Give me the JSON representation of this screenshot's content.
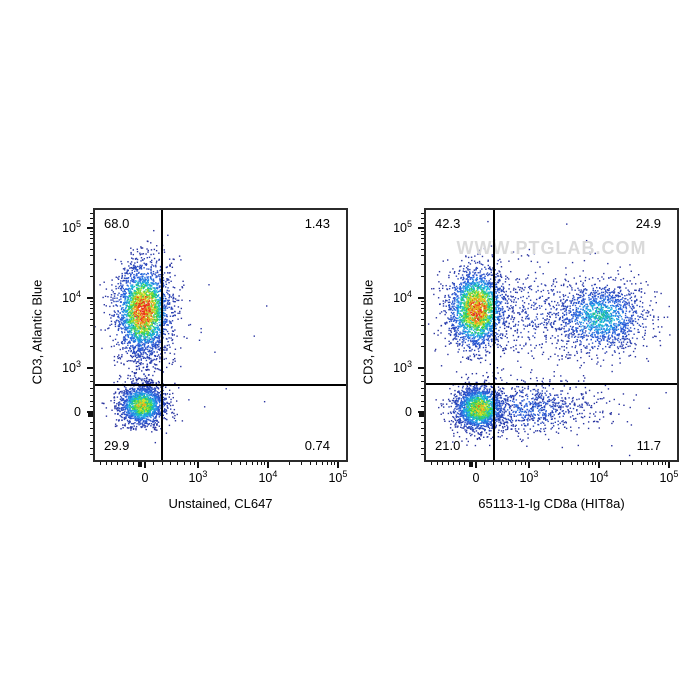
{
  "watermark": {
    "text": "WWW.PTGLAB.COM",
    "color": "#dadada"
  },
  "colors": {
    "background": "#ffffff",
    "frame": "#2b2b2b",
    "gate": "#000000",
    "tick": "#111111",
    "text": "#000000"
  },
  "colormap": [
    [
      0.0,
      "#28309c"
    ],
    [
      0.3,
      "#2b62e0"
    ],
    [
      0.48,
      "#1cc0e8"
    ],
    [
      0.62,
      "#27d044"
    ],
    [
      0.78,
      "#e6e928"
    ],
    [
      0.9,
      "#f59c1c"
    ],
    [
      1.0,
      "#e8321c"
    ]
  ],
  "chart_data": [
    {
      "type": "scatter",
      "plot_style": "flow-cytometry-density-dot-plot",
      "xlabel": "Unstained, CL647",
      "ylabel": "CD3, Atlantic Blue",
      "x_scale": "biexponential",
      "y_scale": "biexponential",
      "x_ticks": [
        {
          "text": "0",
          "f": 0.199
        },
        {
          "text": "10",
          "exp": "3",
          "f": 0.41
        },
        {
          "text": "10",
          "exp": "4",
          "f": 0.689
        },
        {
          "text": "10",
          "exp": "5",
          "f": 0.968
        }
      ],
      "y_ticks": [
        {
          "text": "10",
          "exp": "5",
          "f": 0.072
        },
        {
          "text": "10",
          "exp": "4",
          "f": 0.352
        },
        {
          "text": "10",
          "exp": "3",
          "f": 0.632
        },
        {
          "text": "0",
          "f": 0.808
        }
      ],
      "gate": {
        "fx": 0.267,
        "fy": 0.7
      },
      "quadrants": {
        "top_left": "68.0",
        "top_right": "1.43",
        "bottom_left": "29.9",
        "bottom_right": "0.74"
      },
      "populations": [
        {
          "name": "background-scatter",
          "fx": 0.3,
          "fy": 0.5,
          "sx": 0.3,
          "sy": 0.28,
          "n": 45,
          "peak": 0.04
        },
        {
          "name": "inter-cluster-tail",
          "fx": 0.195,
          "fy": 0.58,
          "sx": 0.042,
          "sy": 0.09,
          "n": 190,
          "peak": 0.15
        },
        {
          "name": "upper-left-cluster",
          "fx": 0.19,
          "fy": 0.4,
          "sx": 0.055,
          "sy": 0.092,
          "n": 2600,
          "peak": 1.0
        },
        {
          "name": "lower-left-cluster",
          "fx": 0.185,
          "fy": 0.778,
          "sx": 0.048,
          "sy": 0.042,
          "n": 1600,
          "peak": 0.76
        }
      ]
    },
    {
      "type": "scatter",
      "plot_style": "flow-cytometry-density-dot-plot",
      "xlabel": "65113-1-Ig CD8a (HIT8a)",
      "ylabel": "CD3, Atlantic Blue",
      "x_scale": "biexponential",
      "y_scale": "biexponential",
      "watermark": true,
      "x_ticks": [
        {
          "text": "0",
          "f": 0.199
        },
        {
          "text": "10",
          "exp": "3",
          "f": 0.41
        },
        {
          "text": "10",
          "exp": "4",
          "f": 0.689
        },
        {
          "text": "10",
          "exp": "5",
          "f": 0.968
        }
      ],
      "y_ticks": [
        {
          "text": "10",
          "exp": "5",
          "f": 0.072
        },
        {
          "text": "10",
          "exp": "4",
          "f": 0.352
        },
        {
          "text": "10",
          "exp": "3",
          "f": 0.632
        },
        {
          "text": "0",
          "f": 0.808
        }
      ],
      "gate": {
        "fx": 0.271,
        "fy": 0.696
      },
      "quadrants": {
        "top_left": "42.3",
        "top_right": "24.9",
        "bottom_left": "21.0",
        "bottom_right": "11.7"
      },
      "populations": [
        {
          "name": "background-scatter",
          "fx": 0.42,
          "fy": 0.52,
          "sx": 0.3,
          "sy": 0.28,
          "n": 70,
          "peak": 0.04
        },
        {
          "name": "upper-bridge-smear",
          "fx": 0.44,
          "fy": 0.41,
          "sx": 0.13,
          "sy": 0.1,
          "n": 430,
          "peak": 0.13
        },
        {
          "name": "upper-right-cluster",
          "fx": 0.69,
          "fy": 0.425,
          "sx": 0.095,
          "sy": 0.072,
          "n": 1400,
          "peak": 0.5
        },
        {
          "name": "upper-left-cluster",
          "fx": 0.2,
          "fy": 0.395,
          "sx": 0.058,
          "sy": 0.082,
          "n": 2300,
          "peak": 0.95
        },
        {
          "name": "lower-right-smear",
          "fx": 0.4,
          "fy": 0.79,
          "sx": 0.12,
          "sy": 0.05,
          "n": 600,
          "peak": 0.3
        },
        {
          "name": "lower-far-tail",
          "fx": 0.56,
          "fy": 0.785,
          "sx": 0.13,
          "sy": 0.045,
          "n": 140,
          "peak": 0.07
        },
        {
          "name": "lower-left-cluster",
          "fx": 0.21,
          "fy": 0.79,
          "sx": 0.052,
          "sy": 0.046,
          "n": 1700,
          "peak": 0.8
        }
      ]
    }
  ]
}
